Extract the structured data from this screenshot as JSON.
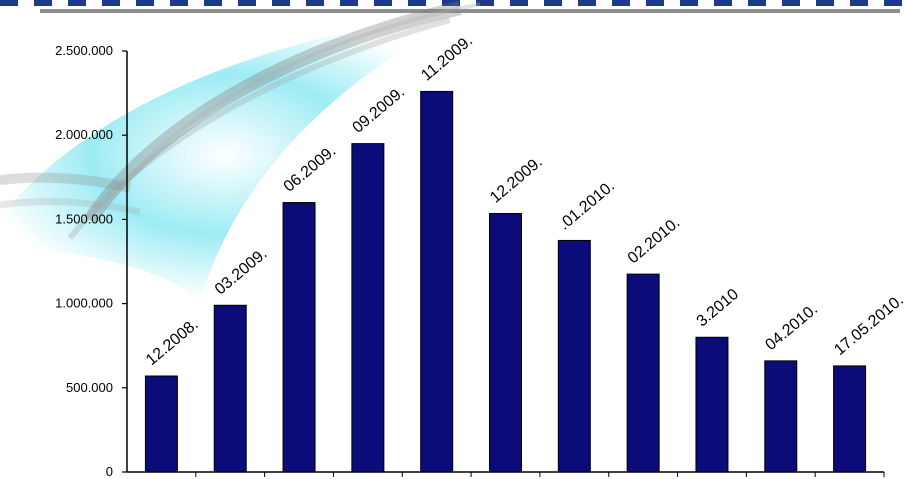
{
  "chart_data": {
    "type": "bar",
    "title": "",
    "xlabel": "",
    "ylabel": "",
    "ylim": [
      0,
      2500000
    ],
    "yticks": [
      "0",
      "500.000",
      "1.000.000",
      "1.500.000",
      "2.000.000",
      "2.500.000"
    ],
    "grid": false,
    "categories": [
      "12.2008.",
      "03.2009.",
      "06.2009.",
      "09.2009.",
      "11.2009.",
      "12.2009.",
      "01.2010.",
      "02.2010.",
      "3.2010",
      "04.2010.",
      "17.05.2010."
    ],
    "labels": [
      "12.2008.",
      "03.2009.",
      "06.2009.",
      "09.2009.",
      "11.2009.",
      "12.2009.",
      ".01.2010.",
      "02.2010.",
      "3.2010",
      "04.2010.",
      "17.05.2010."
    ],
    "values": [
      570000,
      990000,
      1600000,
      1950000,
      2260000,
      1535000,
      1375000,
      1175000,
      800000,
      660000,
      630000
    ],
    "colors": {
      "bar": "#0b0b7a",
      "bar_edge": "#000000",
      "axis": "#000000",
      "decor_blue": "#2fd6e8",
      "decor_gray": "#7a7a7a"
    }
  }
}
